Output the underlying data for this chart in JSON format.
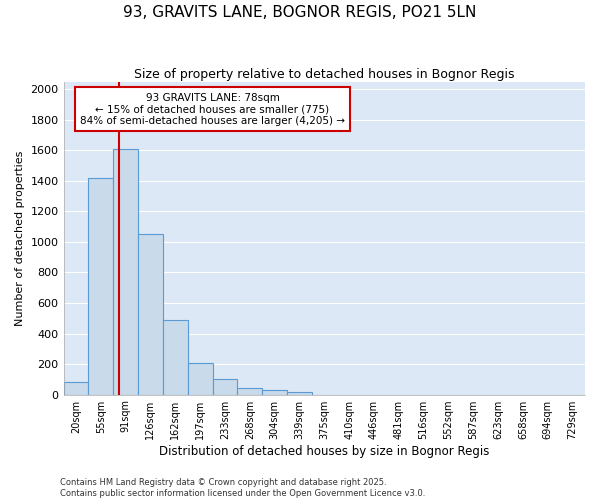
{
  "title1": "93, GRAVITS LANE, BOGNOR REGIS, PO21 5LN",
  "title2": "Size of property relative to detached houses in Bognor Regis",
  "xlabel": "Distribution of detached houses by size in Bognor Regis",
  "ylabel": "Number of detached properties",
  "categories": [
    "20sqm",
    "55sqm",
    "91sqm",
    "126sqm",
    "162sqm",
    "197sqm",
    "233sqm",
    "268sqm",
    "304sqm",
    "339sqm",
    "375sqm",
    "410sqm",
    "446sqm",
    "481sqm",
    "516sqm",
    "552sqm",
    "587sqm",
    "623sqm",
    "658sqm",
    "694sqm",
    "729sqm"
  ],
  "values": [
    80,
    1420,
    1610,
    1055,
    490,
    205,
    105,
    40,
    30,
    20,
    0,
    0,
    0,
    0,
    0,
    0,
    0,
    0,
    0,
    0,
    0
  ],
  "bar_color": "#c9daea",
  "bar_edge_color": "#5b9bd5",
  "red_line_x": 1.72,
  "annotation_line1": "93 GRAVITS LANE: 78sqm",
  "annotation_line2": "← 15% of detached houses are smaller (775)",
  "annotation_line3": "84% of semi-detached houses are larger (4,205) →",
  "annotation_box_color": "#ffffff",
  "annotation_edge_color": "#cc0000",
  "red_line_color": "#cc0000",
  "ylim": [
    0,
    2050
  ],
  "yticks": [
    0,
    200,
    400,
    600,
    800,
    1000,
    1200,
    1400,
    1600,
    1800,
    2000
  ],
  "background_color": "#dce8f5",
  "grid_color": "#ffffff",
  "fig_background": "#ffffff",
  "footer1": "Contains HM Land Registry data © Crown copyright and database right 2025.",
  "footer2": "Contains public sector information licensed under the Open Government Licence v3.0."
}
